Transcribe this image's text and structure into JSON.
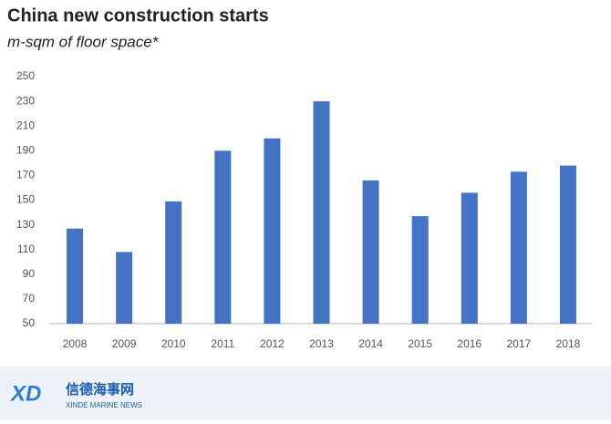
{
  "chart_data": {
    "type": "bar",
    "title": "China new construction starts",
    "subtitle": "m-sqm of floor space*",
    "categories": [
      "2008",
      "2009",
      "2010",
      "2011",
      "2012",
      "2013",
      "2014",
      "2015",
      "2016",
      "2017",
      "2018"
    ],
    "values": [
      127,
      108,
      149,
      190,
      200,
      230,
      166,
      137,
      156,
      173,
      178
    ],
    "color": "#4472c4",
    "ylim": [
      50,
      250
    ],
    "yticks": [
      50,
      70,
      90,
      110,
      130,
      150,
      170,
      190,
      210,
      230,
      250
    ],
    "grid": false
  },
  "watermark": {
    "logo": "XD",
    "name": "信德海事网",
    "tagline": "XINDE MARINE NEWS"
  }
}
